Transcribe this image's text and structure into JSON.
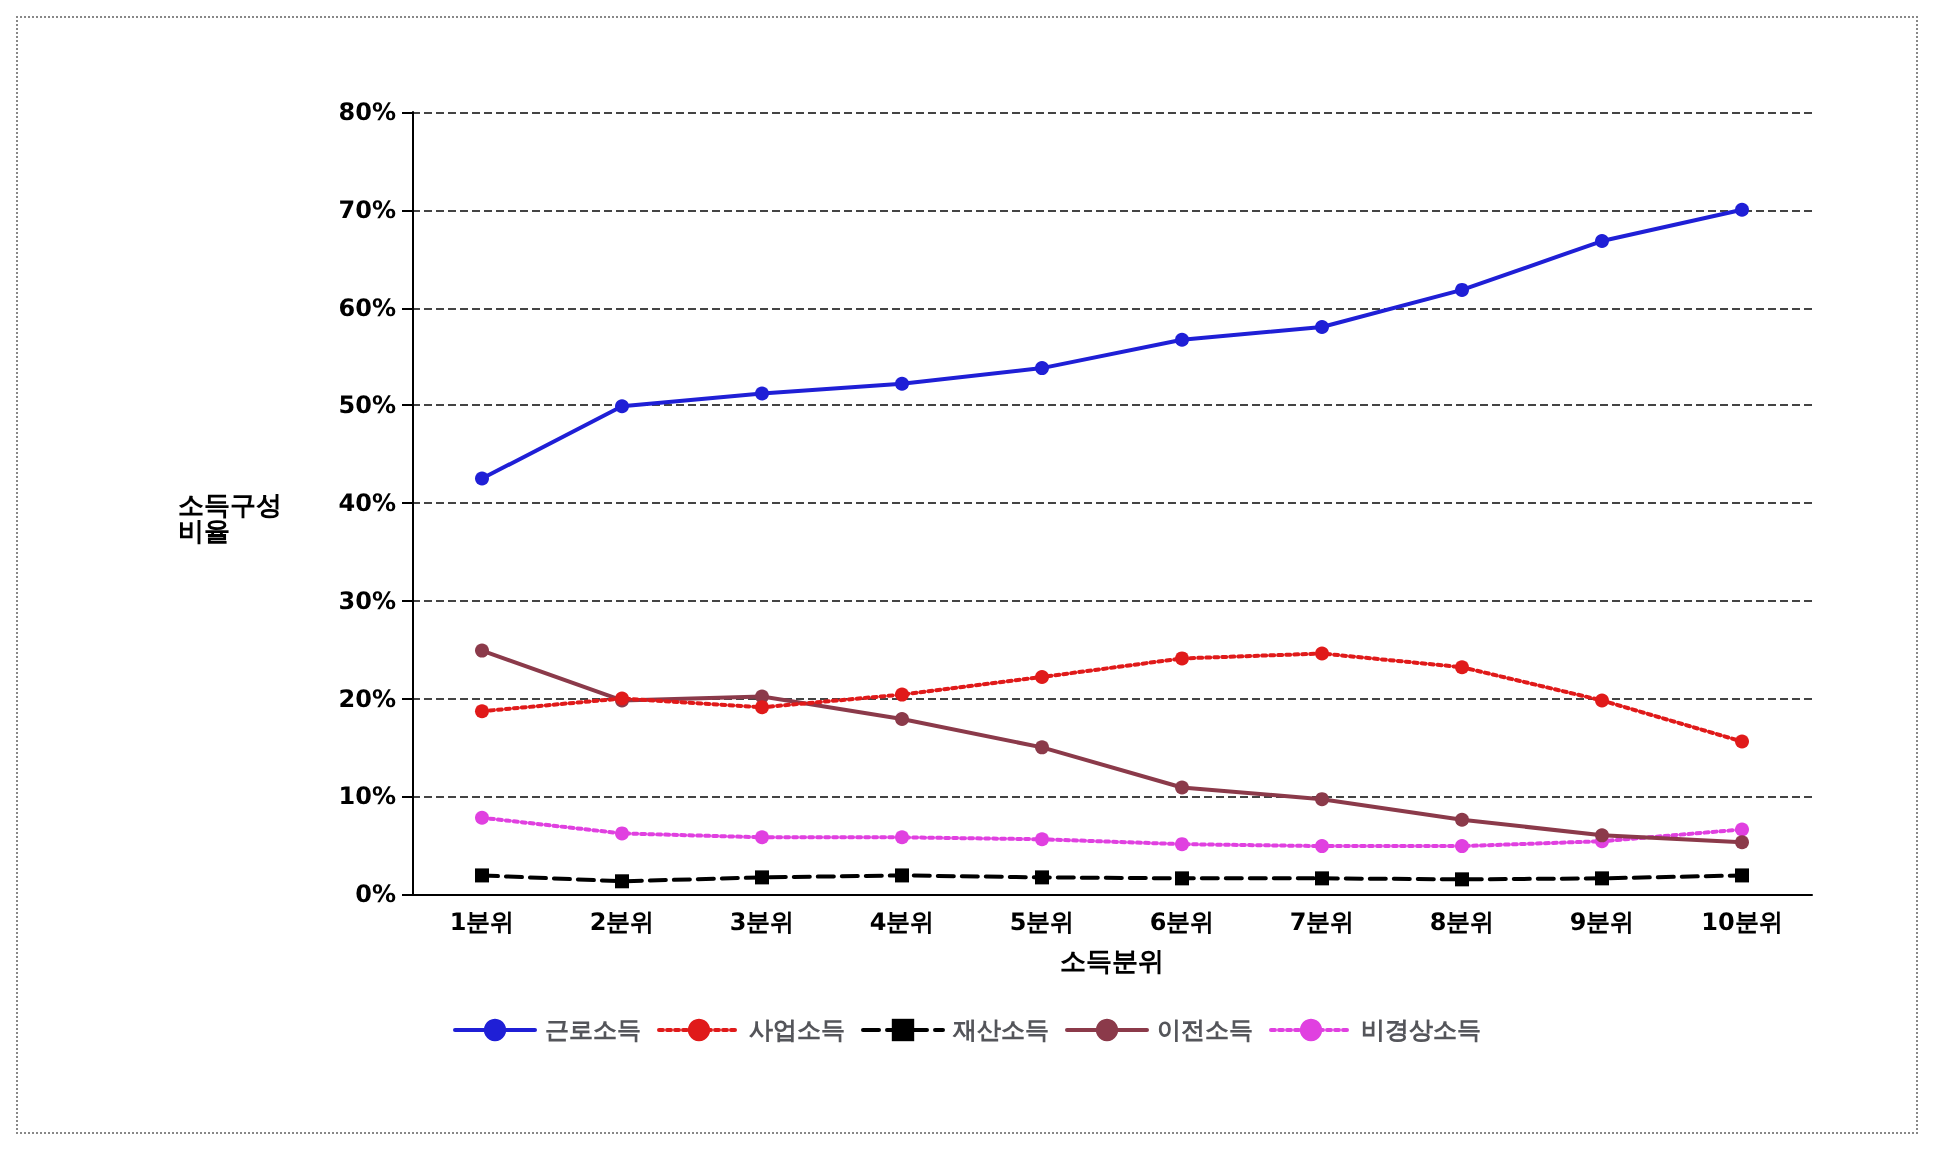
{
  "chart_data": {
    "type": "line",
    "xlabel": "소득분위",
    "ylabel": "소득구성\n비율",
    "categories": [
      "1분위",
      "2분위",
      "3분위",
      "4분위",
      "5분위",
      "6분위",
      "7분위",
      "8분위",
      "9분위",
      "10분위"
    ],
    "series": [
      {
        "name": "근로소득",
        "color": "#1f1fd6",
        "marker": "circle",
        "line_style": "solid",
        "values": [
          42.5,
          49.9,
          51.2,
          52.2,
          53.8,
          56.7,
          58.0,
          61.8,
          66.8,
          70.0
        ]
      },
      {
        "name": "사업소득",
        "color": "#e01a1a",
        "marker": "circle",
        "line_style": "dotted",
        "values": [
          18.7,
          20.0,
          19.1,
          20.4,
          22.2,
          24.1,
          24.6,
          23.2,
          19.8,
          15.6
        ]
      },
      {
        "name": "재산소득",
        "color": "#000000",
        "marker": "square",
        "line_style": "dashed",
        "values": [
          1.9,
          1.3,
          1.7,
          1.9,
          1.7,
          1.6,
          1.6,
          1.5,
          1.6,
          1.9
        ]
      },
      {
        "name": "이전소득",
        "color": "#8b3a4a",
        "marker": "circle",
        "line_style": "solid",
        "values": [
          24.9,
          19.8,
          20.2,
          17.9,
          15.0,
          10.9,
          9.7,
          7.6,
          6.0,
          5.3
        ]
      },
      {
        "name": "비경상소득",
        "color": "#e040e0",
        "marker": "circle",
        "line_style": "dotted",
        "values": [
          7.8,
          6.2,
          5.8,
          5.8,
          5.6,
          5.1,
          4.9,
          4.9,
          5.4,
          6.6
        ]
      }
    ],
    "ylim": [
      0,
      80
    ],
    "yticks": [
      {
        "value": 0,
        "label": "0%"
      },
      {
        "value": 10,
        "label": "10%"
      },
      {
        "value": 20,
        "label": "20%"
      },
      {
        "value": 30,
        "label": "30%"
      },
      {
        "value": 40,
        "label": "40%"
      },
      {
        "value": 50,
        "label": "50%"
      },
      {
        "value": 60,
        "label": "60%"
      },
      {
        "value": 70,
        "label": "70%"
      },
      {
        "value": 80,
        "label": "80%"
      }
    ],
    "grid": "y",
    "legend": "bottom"
  }
}
